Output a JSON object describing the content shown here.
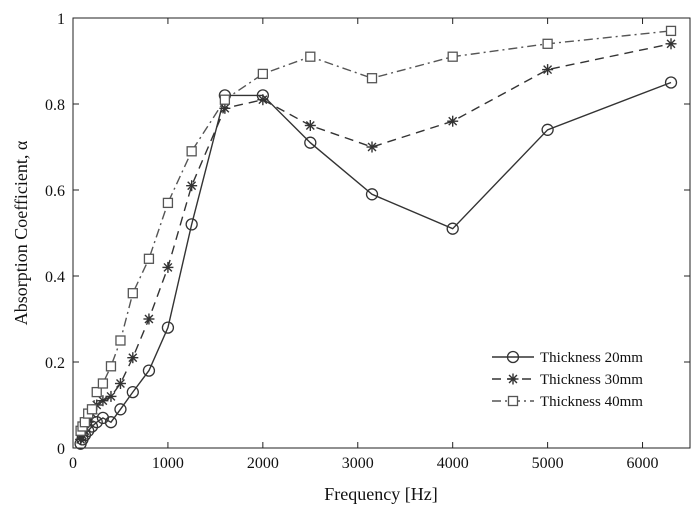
{
  "chart_data": {
    "type": "line",
    "title": "",
    "xlabel": "Frequency [Hz]",
    "ylabel": "Absorption Coefficient, α",
    "xlim": [
      0,
      6500
    ],
    "ylim": [
      0,
      1
    ],
    "xticks": [
      0,
      1000,
      2000,
      3000,
      4000,
      5000,
      6000
    ],
    "yticks": [
      0,
      0.2,
      0.4,
      0.6,
      0.8,
      1
    ],
    "xtick_labels": [
      "0",
      "1000",
      "2000",
      "3000",
      "4000",
      "5000",
      "6000"
    ],
    "ytick_labels": [
      "0",
      "0.2",
      "0.4",
      "0.6",
      "0.8",
      "1"
    ],
    "grid": false,
    "legend_position": "lower-right",
    "series": [
      {
        "name": "Thickness 20mm",
        "line_style": "solid",
        "marker": "circle",
        "color": "#333333",
        "x": [
          80,
          100,
          125,
          160,
          200,
          250,
          315,
          400,
          500,
          630,
          800,
          1000,
          1250,
          1600,
          2000,
          2500,
          3150,
          4000,
          5000,
          6300
        ],
        "y": [
          0.01,
          0.02,
          0.03,
          0.04,
          0.05,
          0.06,
          0.07,
          0.06,
          0.09,
          0.13,
          0.18,
          0.28,
          0.52,
          0.82,
          0.82,
          0.71,
          0.59,
          0.51,
          0.74,
          0.85
        ]
      },
      {
        "name": "Thickness 30mm",
        "line_style": "dashed",
        "marker": "asterisk",
        "color": "#333333",
        "x": [
          80,
          100,
          125,
          160,
          200,
          250,
          315,
          400,
          500,
          630,
          800,
          1000,
          1250,
          1600,
          2000,
          2500,
          3150,
          4000,
          5000,
          6300
        ],
        "y": [
          0.02,
          0.03,
          0.04,
          0.06,
          0.08,
          0.1,
          0.11,
          0.12,
          0.15,
          0.21,
          0.3,
          0.42,
          0.61,
          0.79,
          0.81,
          0.75,
          0.7,
          0.76,
          0.88,
          0.94
        ]
      },
      {
        "name": "Thickness 40mm",
        "line_style": "dashdot",
        "marker": "square",
        "color": "#555555",
        "x": [
          80,
          100,
          125,
          160,
          200,
          250,
          315,
          400,
          500,
          630,
          800,
          1000,
          1250,
          1600,
          2000,
          2500,
          3150,
          4000,
          5000,
          6300
        ],
        "y": [
          0.04,
          0.05,
          0.06,
          0.08,
          0.09,
          0.13,
          0.15,
          0.19,
          0.25,
          0.36,
          0.44,
          0.57,
          0.69,
          0.81,
          0.87,
          0.91,
          0.86,
          0.91,
          0.94,
          0.97
        ]
      }
    ]
  }
}
